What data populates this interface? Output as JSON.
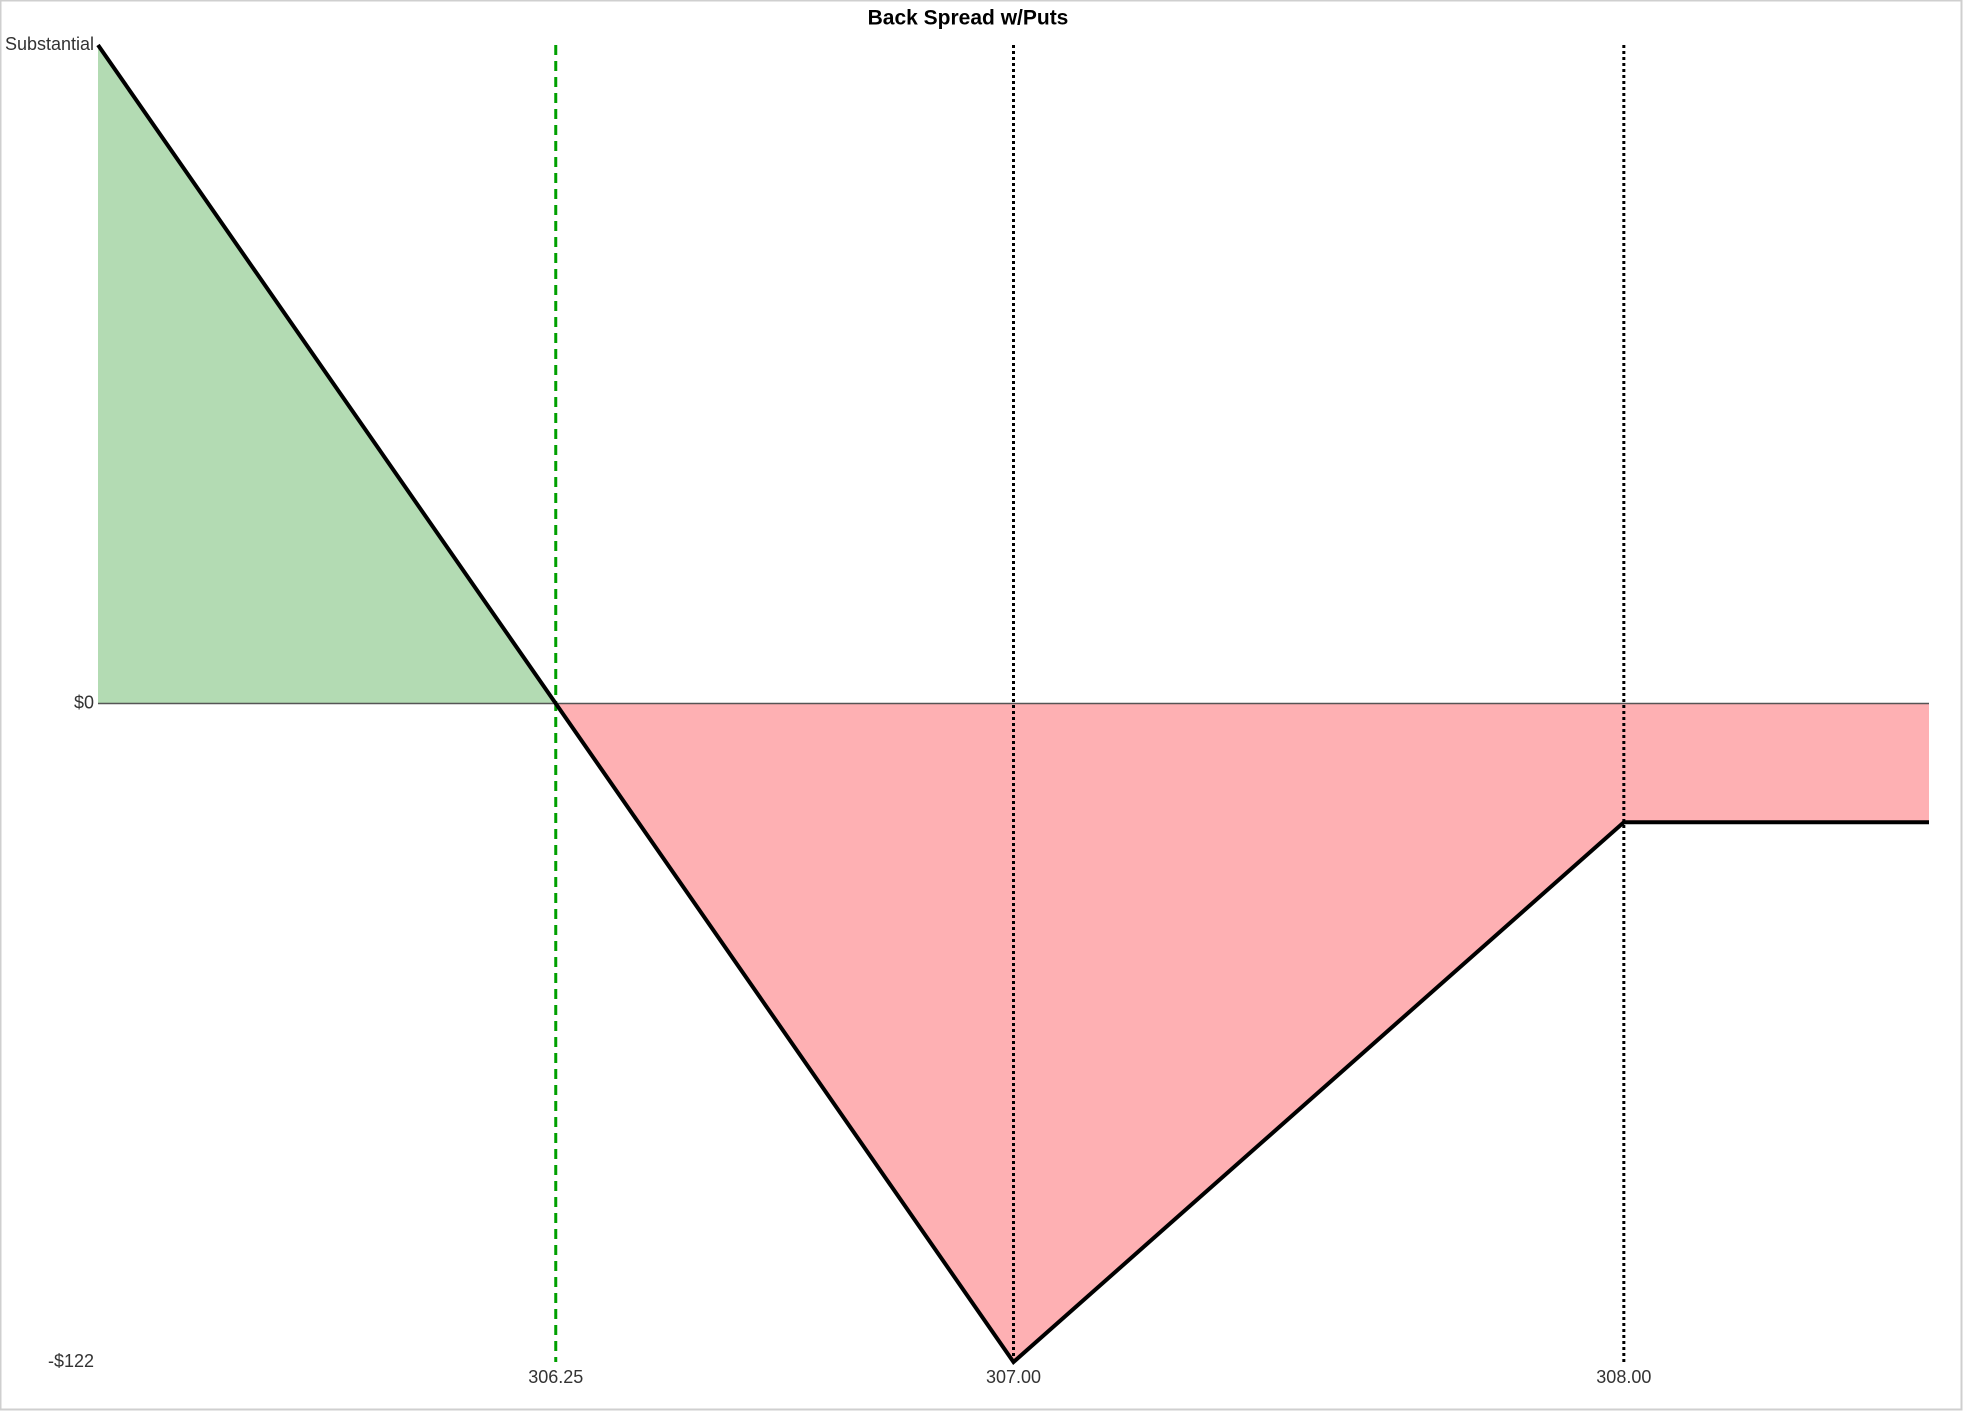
{
  "chart_data": {
    "type": "payoff",
    "title": "Back Spread w/Puts",
    "x": [
      305.5,
      306.25,
      307,
      308,
      308.5
    ],
    "series": [
      {
        "values": [
          122,
          0,
          -122,
          -22,
          -22
        ],
        "color": "#000000"
      }
    ],
    "profit_color": "#b3dbb3",
    "loss_color": "#feb0b3",
    "xlim": [
      305.5,
      308.5
    ],
    "ylim": [
      -122,
      122
    ],
    "xticks": [
      306.25,
      {
        "value": 307,
        "label": "307.00"
      },
      {
        "value": 308,
        "label": "308.00"
      }
    ],
    "yticks": [
      {
        "value": 122,
        "label": "Substantial"
      },
      {
        "value": 0,
        "label": "$0"
      },
      {
        "value": -122,
        "label": "-$122"
      }
    ],
    "vlines": [
      {
        "x": 306.25,
        "color": "#00a000",
        "style": "dashed"
      },
      {
        "x": 307,
        "color": "#000000",
        "style": "dotted"
      },
      {
        "x": 308,
        "color": "#000000",
        "style": "dotted"
      }
    ]
  }
}
